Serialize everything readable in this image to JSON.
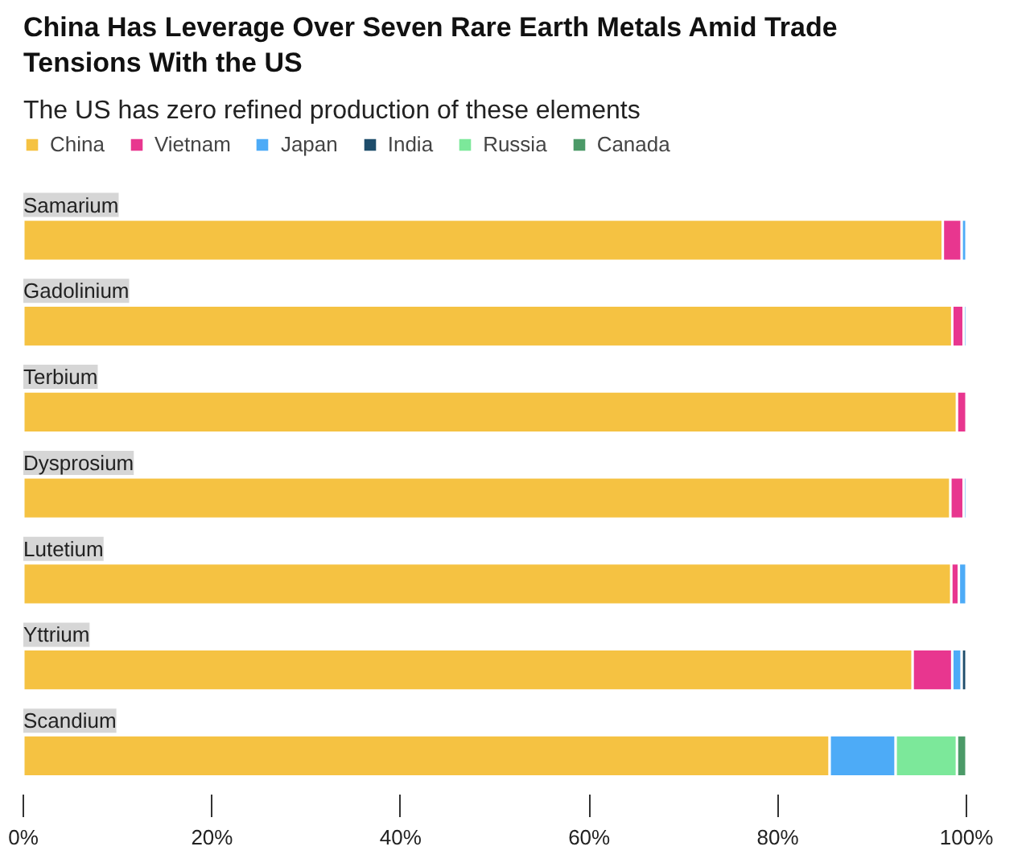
{
  "chart_data": {
    "type": "bar",
    "orientation": "horizontal",
    "stacked": true,
    "title": "China Has Leverage Over Seven Rare Earth Metals Amid Trade Tensions With the US",
    "subtitle": "The US has zero refined production of these elements",
    "categories": [
      "Samarium",
      "Gadolinium",
      "Terbium",
      "Dysprosium",
      "Lutetium",
      "Yttrium",
      "Scandium"
    ],
    "series": [
      {
        "name": "China",
        "color": "#f5c242",
        "values": [
          97.5,
          98.5,
          99,
          98.3,
          98.4,
          94.3,
          85.5
        ]
      },
      {
        "name": "Vietnam",
        "color": "#e8368f",
        "values": [
          2,
          1.2,
          1,
          1.4,
          0.8,
          4.2,
          null
        ]
      },
      {
        "name": "Japan",
        "color": "#4dabf7",
        "values": [
          0.5,
          0.3,
          null,
          0.3,
          0.8,
          1,
          7
        ]
      },
      {
        "name": "India",
        "color": "#1e4d6b",
        "values": [
          null,
          null,
          null,
          null,
          null,
          0.5,
          null
        ]
      },
      {
        "name": "Russia",
        "color": "#7ce89a",
        "values": [
          null,
          null,
          null,
          null,
          null,
          null,
          6.5
        ]
      },
      {
        "name": "Canada",
        "color": "#4c9a68",
        "values": [
          null,
          null,
          null,
          null,
          null,
          null,
          1
        ]
      }
    ],
    "xlim": [
      0,
      100
    ],
    "xticks": [
      {
        "value": 0,
        "label": "0%"
      },
      {
        "value": 20,
        "label": "20%"
      },
      {
        "value": 40,
        "label": "40%"
      },
      {
        "value": 60,
        "label": "60%"
      },
      {
        "value": 80,
        "label": "80%"
      },
      {
        "value": 100,
        "label": "100%"
      }
    ],
    "grid": false,
    "legend": "top left"
  }
}
